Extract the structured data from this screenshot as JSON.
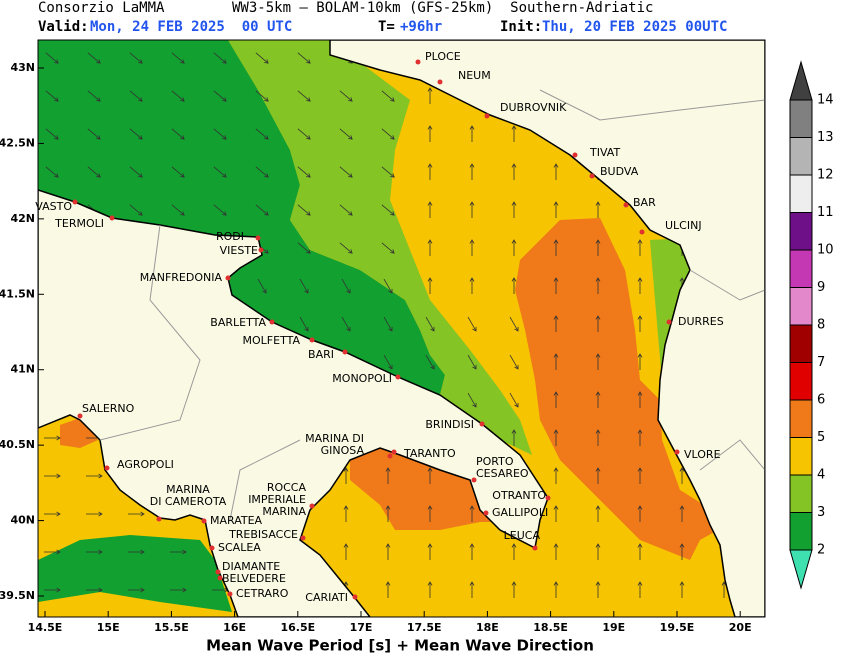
{
  "header": {
    "agency": "Consorzio LaMMA",
    "model": "WW3-5km – BOLAM-10km (GFS-25km)  Southern-Adriatic",
    "valid_label": "Valid:",
    "valid": "Mon, 24 FEB 2025  00 UTC",
    "lead_label": "T=",
    "lead": "+96hr",
    "init_label": "Init:",
    "init": "Thu, 20 FEB 2025 00UTC"
  },
  "map": {
    "lat_labels": [
      "43N",
      "42.5N",
      "42N",
      "41.5N",
      "41N",
      "40.5N",
      "40N",
      "39.5N"
    ],
    "lon_labels": [
      "14.5E",
      "15E",
      "15.5E",
      "16E",
      "16.5E",
      "17E",
      "17.5E",
      "18E",
      "18.5E",
      "19E",
      "19.5E",
      "20E"
    ],
    "cities": [
      [
        "PLOCE"
      ],
      [
        "NEUM"
      ],
      [
        "DUBROVNIK"
      ],
      [
        "TIVAT"
      ],
      [
        "BUDVA"
      ],
      [
        "BAR"
      ],
      [
        "ULCINJ"
      ],
      [
        "DURRES"
      ],
      [
        "VLORE"
      ],
      [
        "VASTO"
      ],
      [
        "TERMOLI"
      ],
      [
        "RODI"
      ],
      [
        "VIESTE"
      ],
      [
        "MANFREDONIA"
      ],
      [
        "BARLETTA"
      ],
      [
        "MOLFETTA"
      ],
      [
        "BARI"
      ],
      [
        "MONOPOLI"
      ],
      [
        "BRINDISI"
      ],
      [
        "SALERNO"
      ],
      [
        "AGROPOLI"
      ],
      [
        "MARINA",
        "DI CAMEROTA"
      ],
      [
        "MARATEA"
      ],
      [
        "ROCCA",
        "IMPERIALE",
        "MARINA"
      ],
      [
        "TREBISACCE"
      ],
      [
        "SCALEA"
      ],
      [
        "DIAMANTE"
      ],
      [
        "BELVEDERE"
      ],
      [
        "CETRARO"
      ],
      [
        "CARIATI"
      ],
      [
        "MARINA DI",
        "GINOSA"
      ],
      [
        "TARANTO"
      ],
      [
        "PORTO",
        "CESAREO"
      ],
      [
        "OTRANTO"
      ],
      [
        "GALLIPOLI"
      ],
      [
        "LEUCA"
      ]
    ]
  },
  "colorbar": {
    "levels": [
      2,
      3,
      4,
      5,
      6,
      7,
      8,
      9,
      10,
      11,
      12,
      13,
      14
    ],
    "colors": [
      "#3fe0b0",
      "#12a030",
      "#84c424",
      "#f6c400",
      "#f07a1a",
      "#e00000",
      "#a00000",
      "#e488cc",
      "#c438b4",
      "#6e1088",
      "#eeeeee",
      "#b4b4b4",
      "#808080",
      "#404040"
    ]
  },
  "footer": "Mean Wave Period [s] + Mean Wave Direction"
}
